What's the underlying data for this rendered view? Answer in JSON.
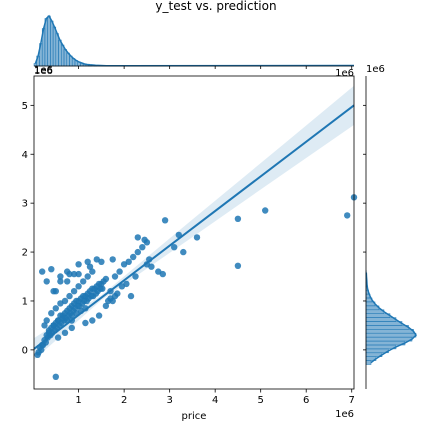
{
  "chart_data": {
    "type": "scatter",
    "kind": "jointplot-regression",
    "title": "y_test vs. prediction",
    "xlabel": "price",
    "ylabel": "",
    "x_offset_label": "1e6",
    "y_offset_label": "1e6",
    "top_marginal_offset_label": "1e6",
    "right_marginal_offset_label": "1e6",
    "xlim": [
      0.02,
      7.05
    ],
    "ylim": [
      -0.8,
      5.6
    ],
    "x_ticks": [
      1,
      2,
      3,
      4,
      5,
      6,
      7
    ],
    "y_ticks": [
      0,
      1,
      2,
      3,
      4,
      5
    ],
    "grid": false,
    "color": "#1f77b4",
    "regression_line": {
      "x": [
        0.02,
        7.05
      ],
      "y": [
        0.02,
        5.0
      ]
    },
    "confidence_band": {
      "x": [
        0.02,
        1.5,
        3.5,
        5.5,
        7.05
      ],
      "half_width": [
        0.22,
        0.05,
        0.18,
        0.3,
        0.4
      ]
    },
    "points": {
      "x": [
        0.15,
        0.2,
        0.25,
        0.3,
        0.35,
        0.4,
        0.45,
        0.5,
        0.55,
        0.6,
        0.65,
        0.7,
        0.75,
        0.8,
        0.85,
        0.9,
        0.95,
        1.0,
        1.05,
        1.1,
        1.15,
        1.2,
        1.25,
        1.3,
        1.35,
        1.4,
        1.45,
        1.5,
        1.55,
        1.6,
        0.1,
        0.12,
        0.18,
        0.22,
        0.28,
        0.32,
        0.38,
        0.42,
        0.48,
        0.52,
        0.58,
        0.62,
        0.68,
        0.72,
        0.78,
        0.82,
        0.88,
        0.92,
        0.98,
        1.02,
        1.08,
        1.12,
        1.18,
        1.22,
        1.28,
        1.32,
        1.38,
        1.42,
        1.48,
        1.52,
        0.3,
        0.4,
        0.5,
        0.6,
        0.7,
        0.8,
        0.9,
        1.0,
        1.1,
        1.2,
        1.3,
        0.35,
        0.45,
        0.55,
        0.65,
        0.75,
        0.85,
        0.95,
        1.05,
        1.15,
        0.25,
        0.5,
        0.75,
        1.0,
        1.25,
        1.5,
        1.75,
        1.8,
        1.9,
        2.0,
        2.1,
        2.2,
        2.3,
        2.4,
        2.5,
        1.7,
        1.85,
        1.95,
        2.05,
        2.15,
        2.25,
        0.4,
        0.6,
        0.8,
        1.0,
        1.2,
        1.4,
        0.55,
        0.7,
        0.85,
        1.15,
        1.3,
        1.45,
        0.2,
        0.3,
        0.45,
        0.6,
        0.75,
        0.9,
        1.6,
        1.65,
        1.7,
        1.75,
        1.8,
        2.3,
        2.45,
        2.6,
        2.75,
        2.9,
        3.1,
        3.2,
        3.3,
        3.6,
        4.5,
        4.5,
        5.1,
        6.9,
        7.05,
        2.5,
        2.55,
        2.85,
        0.85,
        0.5
      ],
      "y": [
        0.05,
        0.1,
        0.2,
        0.3,
        0.35,
        0.45,
        0.5,
        0.55,
        0.6,
        0.7,
        0.7,
        0.75,
        0.8,
        0.85,
        0.9,
        0.95,
        1.0,
        1.0,
        1.05,
        1.1,
        1.1,
        1.15,
        1.2,
        1.25,
        1.25,
        1.3,
        1.35,
        1.35,
        1.4,
        1.45,
        -0.1,
        -0.05,
        0.0,
        0.1,
        0.15,
        0.25,
        0.3,
        0.35,
        0.4,
        0.45,
        0.5,
        0.55,
        0.6,
        0.65,
        0.7,
        0.75,
        0.8,
        0.85,
        0.9,
        0.9,
        0.95,
        1.0,
        1.0,
        1.05,
        1.1,
        1.1,
        1.15,
        1.2,
        1.25,
        1.25,
        0.6,
        0.75,
        0.85,
        0.95,
        1.0,
        1.1,
        1.2,
        1.3,
        1.4,
        1.5,
        1.6,
        0.4,
        0.5,
        0.6,
        0.65,
        0.6,
        0.7,
        0.75,
        0.8,
        0.85,
        0.5,
        1.2,
        1.4,
        1.55,
        1.7,
        1.8,
        1.85,
        1.5,
        1.6,
        1.75,
        1.8,
        1.9,
        2.0,
        2.1,
        2.2,
        1.2,
        1.15,
        1.3,
        1.35,
        1.1,
        1.5,
        1.65,
        1.5,
        1.55,
        1.75,
        1.8,
        1.85,
        0.25,
        0.35,
        0.45,
        0.55,
        0.6,
        0.7,
        1.6,
        1.4,
        1.2,
        1.4,
        1.6,
        1.55,
        0.9,
        1.0,
        1.05,
        1.0,
        1.1,
        2.3,
        2.25,
        1.7,
        1.6,
        2.65,
        2.1,
        2.35,
        2.0,
        2.3,
        2.68,
        1.72,
        2.85,
        2.75,
        3.12,
        1.75,
        1.85,
        1.55,
        0.6,
        -0.55
      ]
    },
    "top_marginal": {
      "note": "distribution of price",
      "bin_width": 0.06,
      "bin_start": 0.02,
      "density": [
        0.05,
        0.2,
        0.45,
        0.75,
        0.95,
        1.0,
        0.9,
        0.78,
        0.65,
        0.52,
        0.42,
        0.33,
        0.26,
        0.2,
        0.15,
        0.11,
        0.08,
        0.06,
        0.04,
        0.03,
        0.025,
        0.02,
        0.015,
        0.012,
        0.01,
        0.008,
        0.006,
        0.005,
        0.004,
        0.003
      ]
    },
    "right_marginal": {
      "note": "distribution of prediction",
      "bin_height": 0.08,
      "bin_start": -0.3,
      "density": [
        0.1,
        0.2,
        0.32,
        0.45,
        0.6,
        0.78,
        0.92,
        1.0,
        0.95,
        0.85,
        0.72,
        0.6,
        0.48,
        0.36,
        0.26,
        0.18,
        0.12,
        0.08,
        0.05,
        0.03,
        0.02,
        0.015,
        0.01,
        0.006
      ]
    }
  }
}
